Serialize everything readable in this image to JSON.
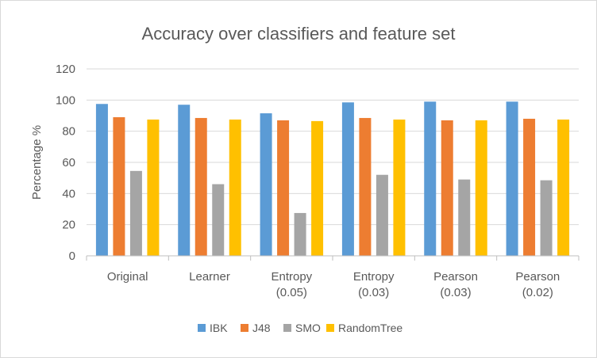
{
  "chart_data": {
    "type": "bar",
    "title": "Accuracy over classifiers and feature set",
    "xlabel": "",
    "ylabel": "Percentage %",
    "ylim": [
      0,
      120
    ],
    "yticks": [
      "0",
      "20",
      "40",
      "60",
      "80",
      "100",
      "120"
    ],
    "grid": true,
    "legend": "bottom",
    "categories": [
      [
        "Original"
      ],
      [
        "Learner"
      ],
      [
        "Entropy",
        "(0.05)"
      ],
      [
        "Entropy",
        "(0.03)"
      ],
      [
        "Pearson",
        "(0.03)"
      ],
      [
        "Pearson",
        "(0.02)"
      ]
    ],
    "series": [
      {
        "name": "IBK",
        "color": "#5b9bd5",
        "values": [
          97.5,
          97,
          91.5,
          98.5,
          99,
          99
        ]
      },
      {
        "name": "J48",
        "color": "#ed7d31",
        "values": [
          89,
          88.5,
          87,
          88.5,
          87,
          88
        ]
      },
      {
        "name": "SMO",
        "color": "#a5a5a5",
        "values": [
          54.5,
          46,
          27.5,
          52,
          49,
          48.5
        ]
      },
      {
        "name": "RandomTree",
        "color": "#ffc000",
        "values": [
          87.5,
          87.5,
          86.5,
          87.5,
          87,
          87.5
        ]
      }
    ]
  }
}
